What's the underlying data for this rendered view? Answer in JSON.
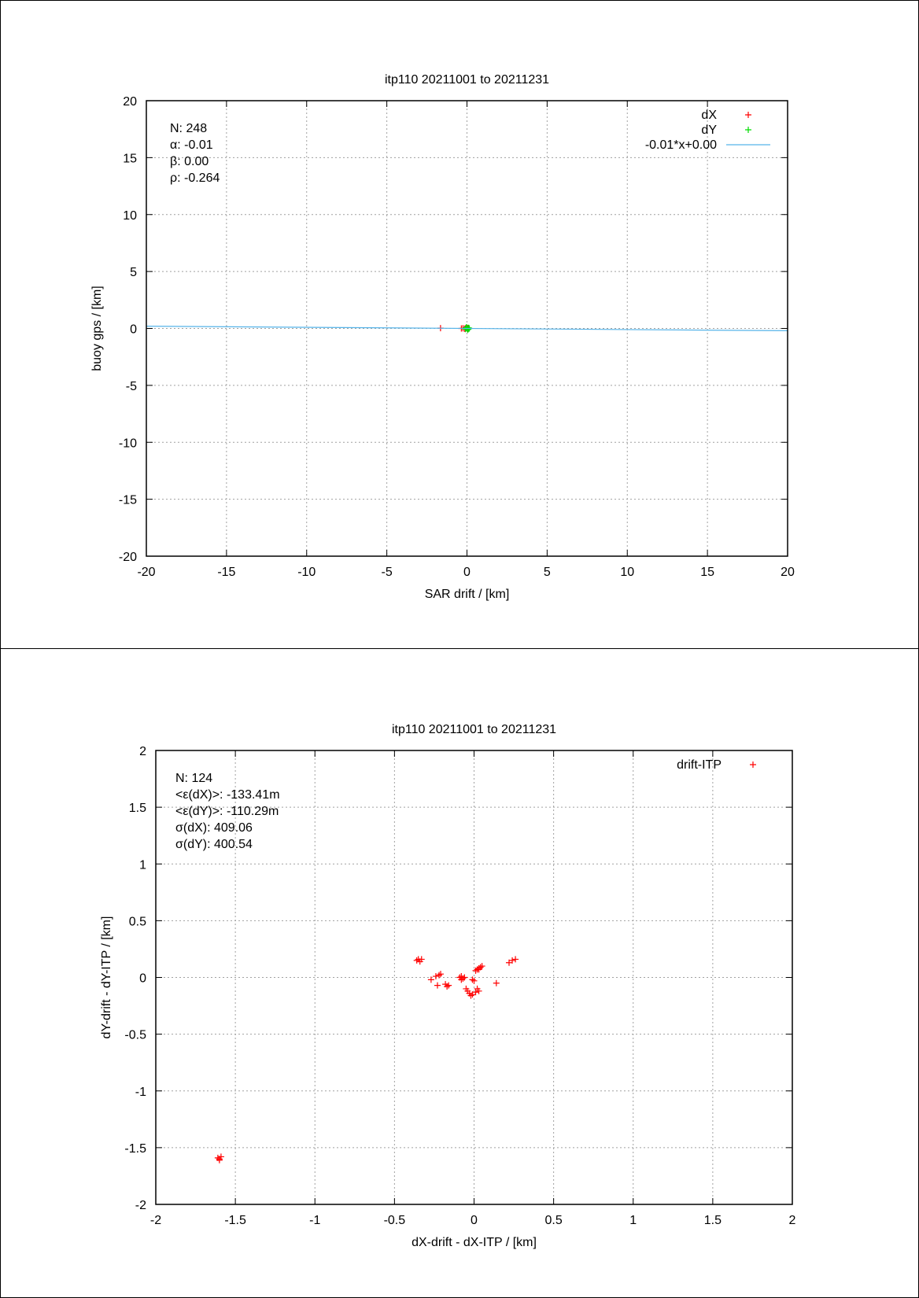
{
  "chart_data": [
    {
      "type": "scatter",
      "title": "itp110 20211001 to 20211231",
      "xlabel": "SAR drift / [km]",
      "ylabel": "buoy gps / [km]",
      "xlim": [
        -20,
        20
      ],
      "ylim": [
        -20,
        20
      ],
      "xticks": [
        -20,
        -15,
        -10,
        -5,
        0,
        5,
        10,
        15,
        20
      ],
      "yticks": [
        -20,
        -15,
        -10,
        -5,
        0,
        5,
        10,
        15,
        20
      ],
      "grid": true,
      "legend_position": "top-right",
      "stats": [
        "N: 248",
        "α: -0.01",
        "β: 0.00",
        "ρ: -0.264"
      ],
      "series": [
        {
          "name": "dX",
          "color": "#ff0000",
          "marker": "plus",
          "points": [
            [
              -1.65,
              0.03
            ],
            [
              -0.35,
              0.0
            ],
            [
              -0.25,
              0.02
            ],
            [
              -0.15,
              -0.03
            ],
            [
              -0.1,
              0.0
            ],
            [
              -0.05,
              0.05
            ],
            [
              0.0,
              -0.02
            ],
            [
              0.05,
              0.03
            ],
            [
              0.1,
              0.0
            ]
          ]
        },
        {
          "name": "dY",
          "color": "#00dd00",
          "marker": "plus",
          "points": [
            [
              -0.1,
              -0.05
            ],
            [
              -0.05,
              0.05
            ],
            [
              0.0,
              0.0
            ],
            [
              0.05,
              -0.1
            ],
            [
              0.1,
              0.05
            ],
            [
              0.15,
              0.0
            ],
            [
              -0.02,
              0.1
            ],
            [
              0.08,
              -0.05
            ]
          ]
        },
        {
          "name": "-0.01*x+0.00",
          "color": "#56b4e9",
          "type": "line",
          "slope": -0.01,
          "intercept": 0.0
        }
      ]
    },
    {
      "type": "scatter",
      "title": "itp110 20211001 to 20211231",
      "xlabel": "dX-drift - dX-ITP / [km]",
      "ylabel": "dY-drift - dY-ITP / [km]",
      "xlim": [
        -2,
        2
      ],
      "ylim": [
        -2,
        2
      ],
      "xticks": [
        -2,
        -1.5,
        -1,
        -0.5,
        0,
        0.5,
        1,
        1.5,
        2
      ],
      "yticks": [
        -2,
        -1.5,
        -1,
        -0.5,
        0,
        0.5,
        1,
        1.5,
        2
      ],
      "grid": true,
      "legend_position": "top-right",
      "stats": [
        "N: 124",
        "<ε(dX)>:  -133.41m",
        "<ε(dY)>: -110.29m",
        "σ(dX):  409.06",
        "σ(dY):  400.54"
      ],
      "series": [
        {
          "name": "drift-ITP",
          "color": "#ff0000",
          "marker": "plus",
          "points": [
            [
              -1.61,
              -1.59
            ],
            [
              -1.6,
              -1.6
            ],
            [
              -1.59,
              -1.58
            ],
            [
              -1.6,
              -1.61
            ],
            [
              -0.36,
              0.15
            ],
            [
              -0.35,
              0.16
            ],
            [
              -0.34,
              0.14
            ],
            [
              -0.33,
              0.16
            ],
            [
              -0.27,
              -0.02
            ],
            [
              -0.24,
              0.01
            ],
            [
              -0.22,
              0.02
            ],
            [
              -0.21,
              0.03
            ],
            [
              -0.23,
              -0.07
            ],
            [
              -0.18,
              -0.06
            ],
            [
              -0.17,
              -0.08
            ],
            [
              -0.16,
              -0.07
            ],
            [
              -0.09,
              0.0
            ],
            [
              -0.08,
              0.01
            ],
            [
              -0.07,
              -0.01
            ],
            [
              -0.06,
              0.0
            ],
            [
              -0.08,
              -0.02
            ],
            [
              -0.05,
              -0.1
            ],
            [
              -0.04,
              -0.12
            ],
            [
              -0.03,
              -0.14
            ],
            [
              -0.02,
              -0.16
            ],
            [
              -0.01,
              -0.15
            ],
            [
              0.0,
              -0.03
            ],
            [
              -0.01,
              -0.02
            ],
            [
              0.01,
              -0.13
            ],
            [
              0.02,
              -0.1
            ],
            [
              0.03,
              -0.12
            ],
            [
              0.01,
              0.06
            ],
            [
              0.02,
              0.07
            ],
            [
              0.03,
              0.08
            ],
            [
              0.04,
              0.09
            ],
            [
              0.05,
              0.1
            ],
            [
              0.03,
              0.07
            ],
            [
              0.14,
              -0.05
            ],
            [
              0.22,
              0.13
            ],
            [
              0.24,
              0.15
            ],
            [
              0.26,
              0.16
            ]
          ]
        }
      ]
    }
  ]
}
